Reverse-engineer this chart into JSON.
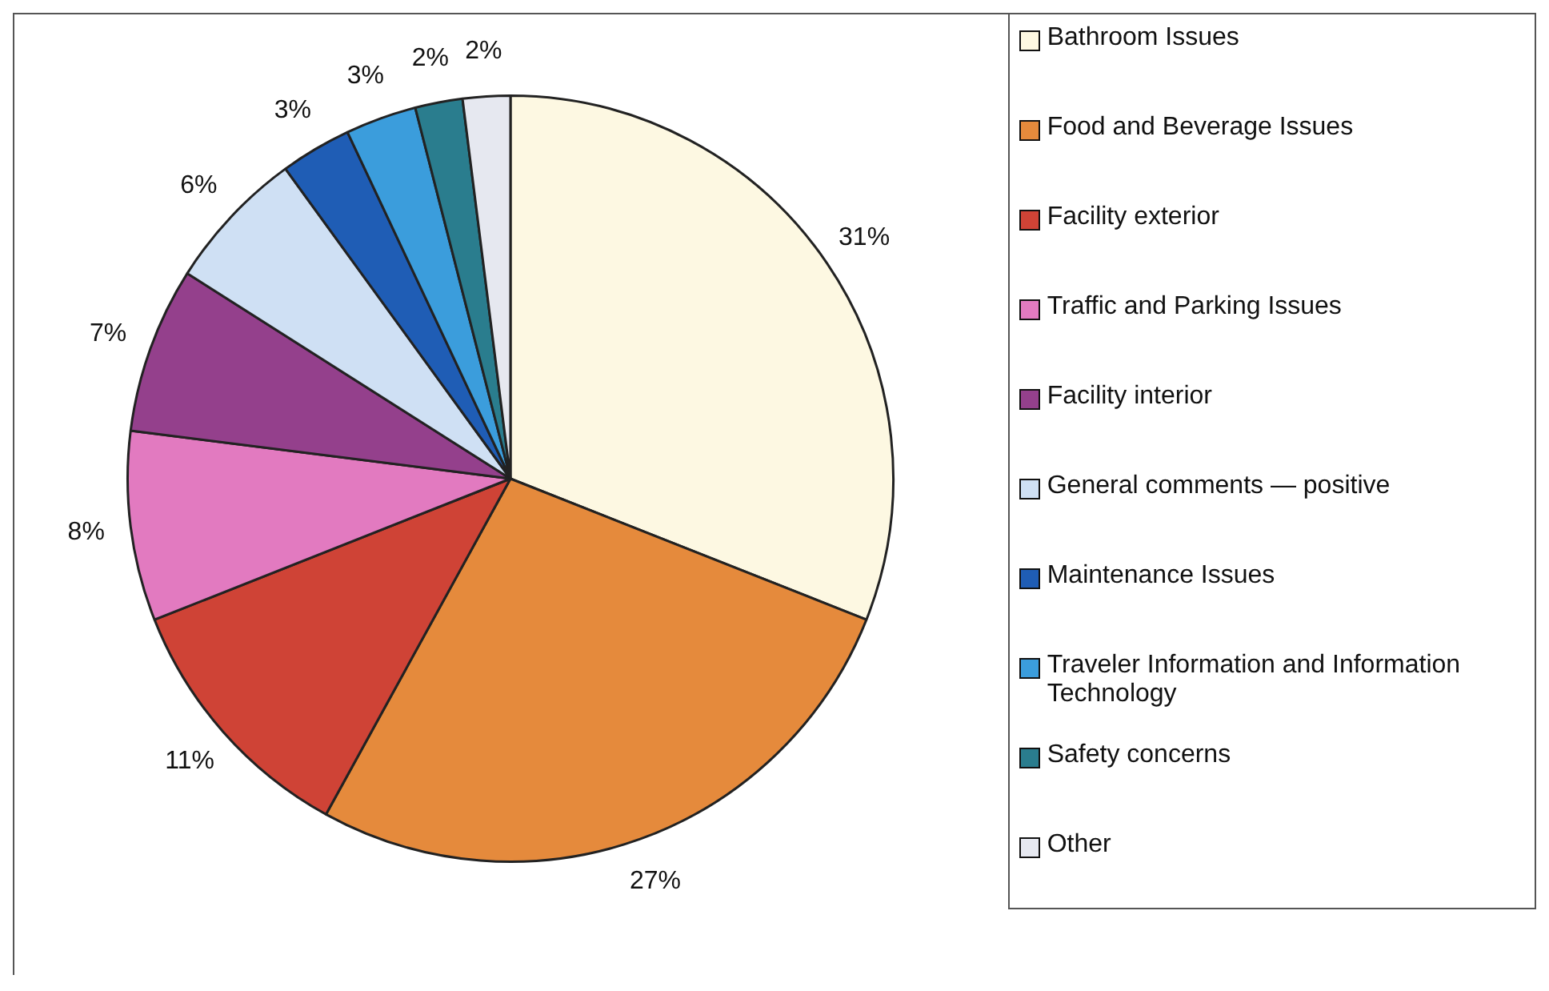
{
  "chart_data": {
    "type": "pie",
    "categories": [
      "Bathroom Issues",
      "Food and Beverage Issues",
      "Facility exterior",
      "Traffic and Parking Issues",
      "Facility interior",
      "General comments — positive",
      "Maintenance Issues",
      "Traveler Information and Information Technology",
      "Safety concerns",
      "Other"
    ],
    "values": [
      31,
      27,
      11,
      8,
      7,
      6,
      3,
      3,
      2,
      2
    ],
    "value_labels": [
      "31%",
      "27%",
      "11%",
      "8%",
      "7%",
      "6%",
      "3%",
      "3%",
      "2%",
      "2%"
    ],
    "colors": [
      "#fdf8e2",
      "#e58a3c",
      "#cf4336",
      "#e27ac0",
      "#94408c",
      "#cfe0f4",
      "#1f5db5",
      "#3b9ddc",
      "#2a7d8e",
      "#e6e8f0"
    ],
    "legend": "right"
  }
}
